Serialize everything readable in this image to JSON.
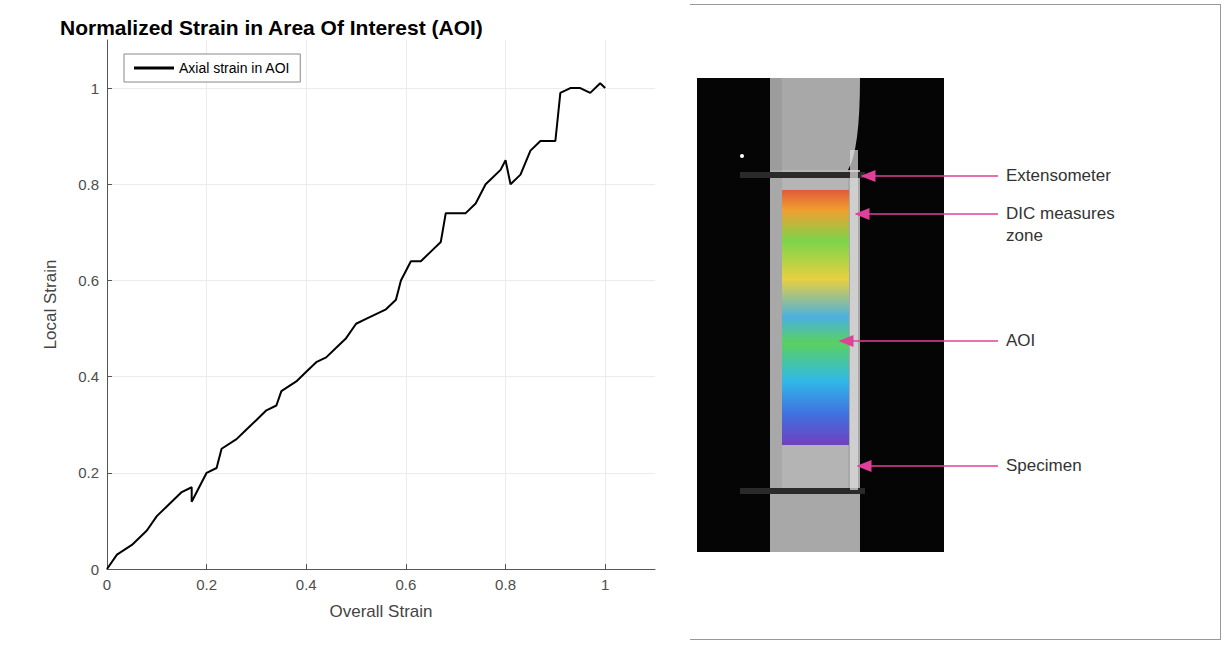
{
  "chart_data": {
    "type": "line",
    "title": "Normalized Strain in Area Of Interest (AOI)",
    "x_label": "Overall Strain",
    "y_label": "Local Strain",
    "series": [
      {
        "name": "Axial strain in AOI",
        "color": "#000000",
        "x": [
          0,
          0.02,
          0.05,
          0.08,
          0.1,
          0.12,
          0.15,
          0.17,
          0.17,
          0.2,
          0.22,
          0.23,
          0.26,
          0.28,
          0.3,
          0.32,
          0.34,
          0.35,
          0.38,
          0.4,
          0.42,
          0.44,
          0.46,
          0.48,
          0.5,
          0.52,
          0.54,
          0.56,
          0.58,
          0.59,
          0.61,
          0.63,
          0.65,
          0.67,
          0.68,
          0.7,
          0.72,
          0.74,
          0.76,
          0.77,
          0.79,
          0.8,
          0.81,
          0.83,
          0.85,
          0.87,
          0.89,
          0.9,
          0.91,
          0.93,
          0.95,
          0.97,
          0.99,
          1.0
        ],
        "values": [
          0,
          0.03,
          0.05,
          0.08,
          0.11,
          0.13,
          0.16,
          0.17,
          0.14,
          0.2,
          0.21,
          0.25,
          0.27,
          0.29,
          0.31,
          0.33,
          0.34,
          0.37,
          0.39,
          0.41,
          0.43,
          0.44,
          0.46,
          0.48,
          0.51,
          0.52,
          0.53,
          0.54,
          0.56,
          0.6,
          0.64,
          0.64,
          0.66,
          0.68,
          0.74,
          0.74,
          0.74,
          0.76,
          0.8,
          0.81,
          0.83,
          0.85,
          0.8,
          0.82,
          0.87,
          0.89,
          0.89,
          0.89,
          0.99,
          1.0,
          1.0,
          0.99,
          1.01,
          1.0
        ]
      }
    ],
    "xlim": [
      0,
      1.1
    ],
    "xticks": [
      0,
      0.2,
      0.4,
      0.6,
      0.8,
      1
    ],
    "ylim": [
      0,
      1.1
    ],
    "yticks": [
      0,
      0.2,
      0.4,
      0.6,
      0.8,
      1
    ],
    "grid": true,
    "legend": "upper left",
    "annotations": [
      "Extensometer",
      "DIC measures zone",
      "AOI",
      "Specimen"
    ]
  }
}
